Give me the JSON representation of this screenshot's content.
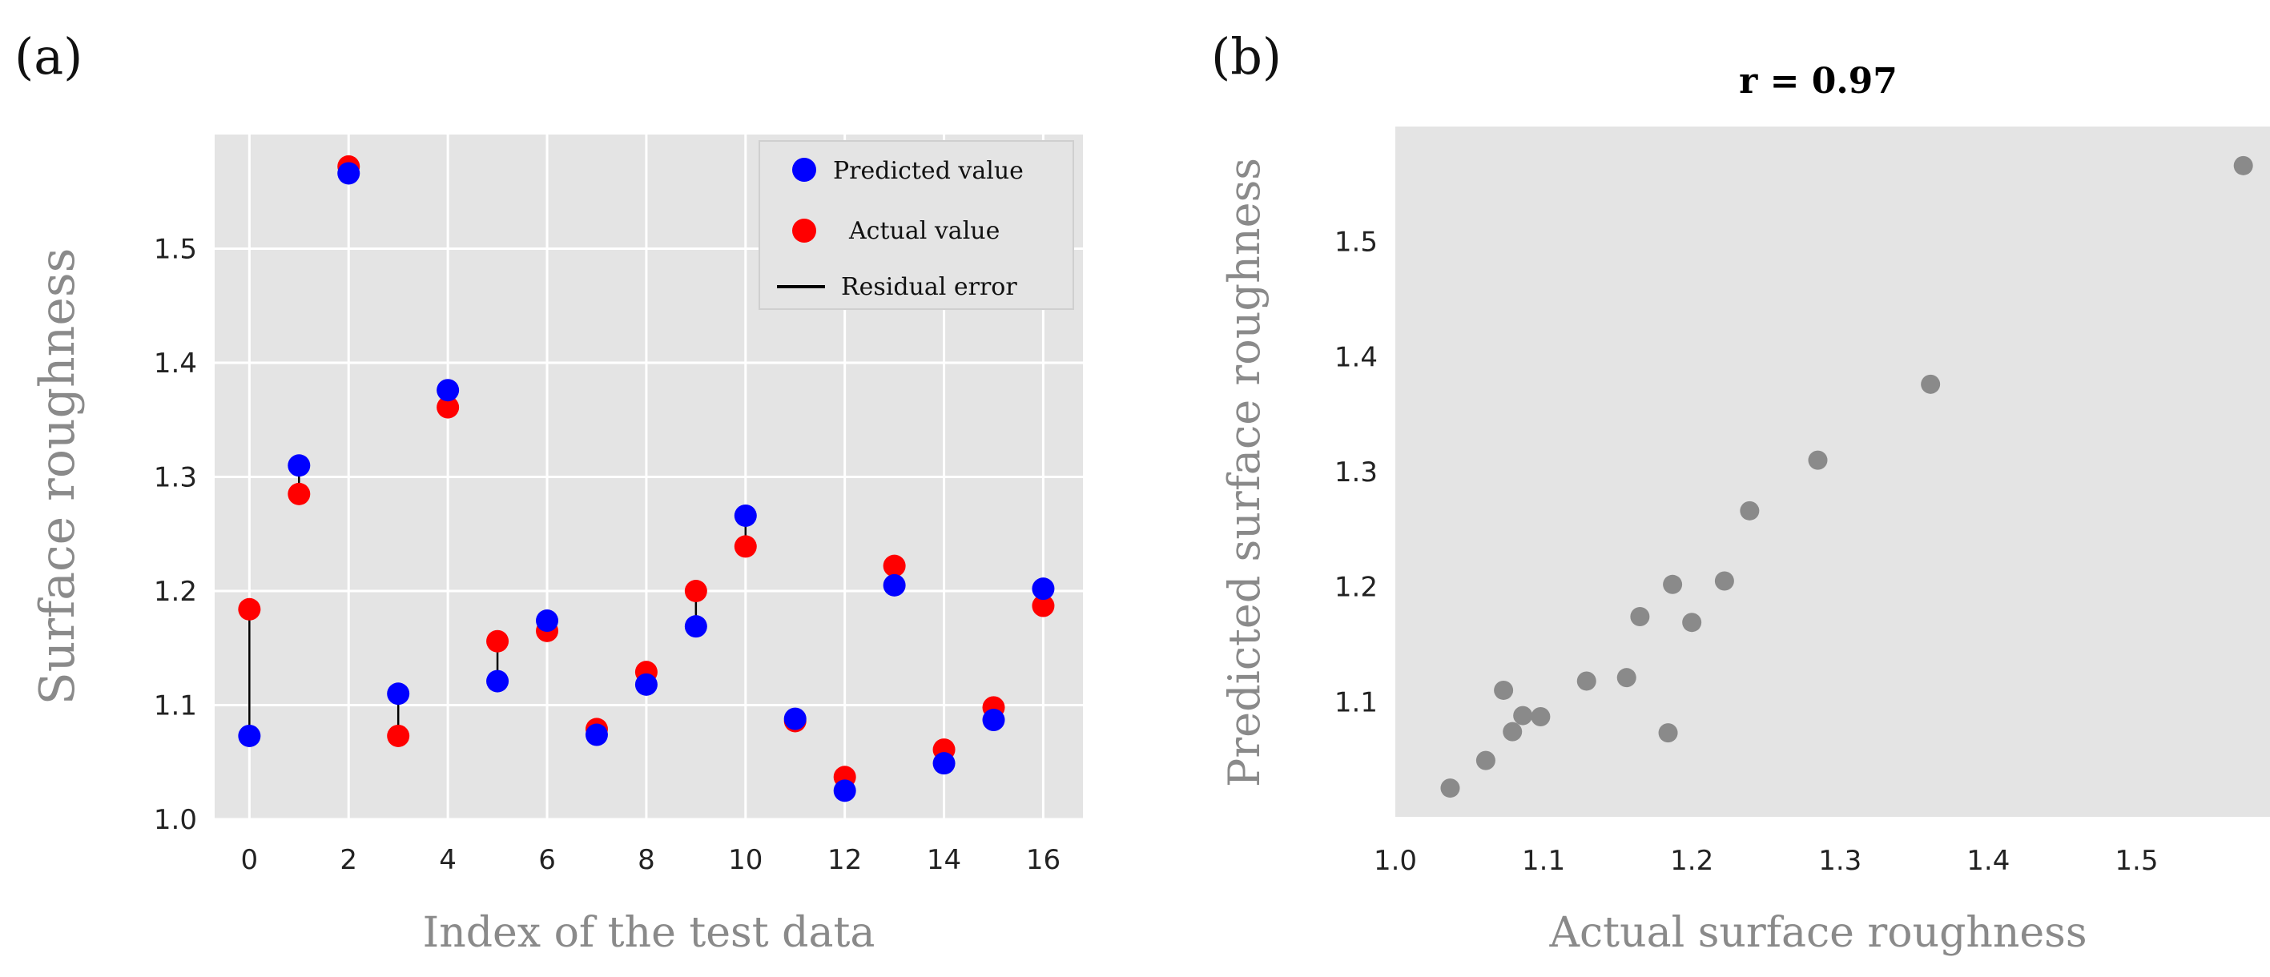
{
  "figure": {
    "panel_a_label": "(a)",
    "panel_b_label": "(b)"
  },
  "chart_data": [
    {
      "type": "scatter",
      "title": "",
      "xlabel": "Index of the test data",
      "ylabel": "Surface roughness",
      "xlim": [
        -0.7,
        16.8
      ],
      "ylim": [
        1.0,
        1.6
      ],
      "xticks": [
        0,
        2,
        4,
        6,
        8,
        10,
        12,
        14,
        16
      ],
      "yticks": [
        1.0,
        1.1,
        1.2,
        1.3,
        1.4,
        1.5
      ],
      "xtick_labels": [
        "0",
        "2",
        "4",
        "6",
        "8",
        "10",
        "12",
        "14",
        "16"
      ],
      "ytick_labels": [
        "1.0",
        "1.1",
        "1.2",
        "1.3",
        "1.4",
        "1.5"
      ],
      "grid": true,
      "legend_position": "top-right",
      "x": [
        0,
        1,
        2,
        3,
        4,
        5,
        6,
        7,
        8,
        9,
        10,
        11,
        12,
        13,
        14,
        15,
        16
      ],
      "series": [
        {
          "name": "Predicted value",
          "color": "#0000ff",
          "values": [
            1.073,
            1.31,
            1.566,
            1.11,
            1.376,
            1.121,
            1.174,
            1.074,
            1.118,
            1.169,
            1.266,
            1.088,
            1.025,
            1.205,
            1.049,
            1.087,
            1.202
          ]
        },
        {
          "name": "Actual value",
          "color": "#ff0000",
          "values": [
            1.184,
            1.285,
            1.572,
            1.073,
            1.361,
            1.156,
            1.165,
            1.079,
            1.129,
            1.2,
            1.239,
            1.086,
            1.037,
            1.222,
            1.061,
            1.098,
            1.187
          ]
        }
      ],
      "residual_error": {
        "name": "Residual error",
        "color": "#000000"
      }
    },
    {
      "type": "scatter",
      "title": "r = 0.97",
      "xlabel": "Actual surface roughness",
      "ylabel": "Predicted surface roughness",
      "xlim": [
        1.0,
        1.59
      ],
      "ylim": [
        1.0,
        1.6
      ],
      "xticks": [
        1.0,
        1.1,
        1.2,
        1.3,
        1.4,
        1.5
      ],
      "yticks": [
        1.1,
        1.2,
        1.3,
        1.4,
        1.5
      ],
      "xtick_labels": [
        "1.0",
        "1.1",
        "1.2",
        "1.3",
        "1.4",
        "1.5"
      ],
      "ytick_labels": [
        "1.1",
        "1.2",
        "1.3",
        "1.4",
        "1.5"
      ],
      "grid": false,
      "point_color": "#8a8a8a",
      "points": [
        {
          "x": 1.184,
          "y": 1.073
        },
        {
          "x": 1.285,
          "y": 1.31
        },
        {
          "x": 1.572,
          "y": 1.566
        },
        {
          "x": 1.073,
          "y": 1.11
        },
        {
          "x": 1.361,
          "y": 1.376
        },
        {
          "x": 1.156,
          "y": 1.121
        },
        {
          "x": 1.165,
          "y": 1.174
        },
        {
          "x": 1.079,
          "y": 1.074
        },
        {
          "x": 1.129,
          "y": 1.118
        },
        {
          "x": 1.2,
          "y": 1.169
        },
        {
          "x": 1.239,
          "y": 1.266
        },
        {
          "x": 1.086,
          "y": 1.088
        },
        {
          "x": 1.037,
          "y": 1.025
        },
        {
          "x": 1.222,
          "y": 1.205
        },
        {
          "x": 1.061,
          "y": 1.049
        },
        {
          "x": 1.098,
          "y": 1.087
        },
        {
          "x": 1.187,
          "y": 1.202
        }
      ]
    }
  ]
}
